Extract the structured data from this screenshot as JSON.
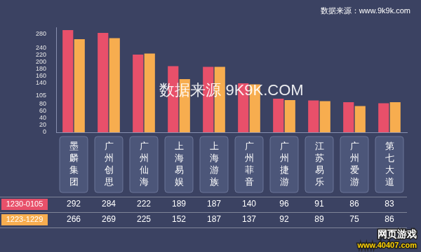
{
  "chart_data": {
    "type": "bar",
    "source": "数据来源：www.9k9k.com",
    "watermark": "数据来源 9K9K.COM",
    "logo_text": [
      "网页游戏",
      "www.40407.com"
    ],
    "categories": [
      "墨麟集团",
      "广州创思",
      "广州仙海",
      "上海易娱",
      "上海游族",
      "广州菲音",
      "广州捷游",
      "江苏易乐",
      "广州爱游",
      "第七大道"
    ],
    "series": [
      {
        "name": "1230-0105",
        "color": "#e8506a",
        "values": [
          292,
          284,
          222,
          189,
          187,
          140,
          96,
          91,
          86,
          83
        ]
      },
      {
        "name": "1223-1229",
        "color": "#f7ad4f",
        "values": [
          266,
          269,
          225,
          152,
          187,
          137,
          92,
          89,
          75,
          86
        ]
      }
    ],
    "ylim": [
      0,
      300
    ],
    "yticks": [
      0,
      20,
      40,
      60,
      80,
      105,
      140,
      160,
      180,
      200,
      220,
      240,
      280
    ],
    "grid": false
  }
}
